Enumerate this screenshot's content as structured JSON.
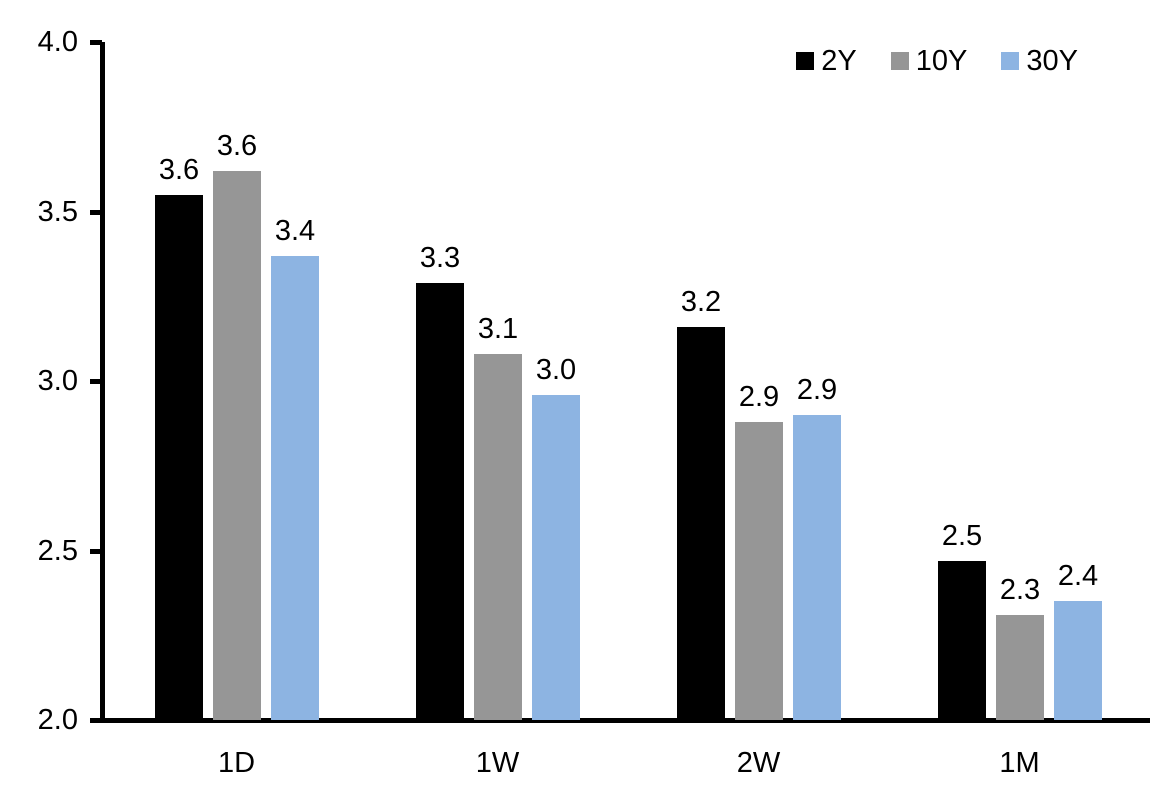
{
  "chart_data": {
    "type": "bar",
    "title": "",
    "categories": [
      "1D",
      "1W",
      "2W",
      "1M"
    ],
    "series": [
      {
        "name": "2Y",
        "color": "#000000",
        "values": [
          3.55,
          3.29,
          3.16,
          2.47
        ],
        "labels": [
          "3.6",
          "3.3",
          "3.2",
          "2.5"
        ]
      },
      {
        "name": "10Y",
        "color": "#969696",
        "values": [
          3.62,
          3.08,
          2.88,
          2.31
        ],
        "labels": [
          "3.6",
          "3.1",
          "2.9",
          "2.3"
        ]
      },
      {
        "name": "30Y",
        "color": "#8DB4E2",
        "values": [
          3.37,
          2.96,
          2.9,
          2.35
        ],
        "labels": [
          "3.4",
          "3.0",
          "2.9",
          "2.4"
        ]
      }
    ],
    "y_axis": {
      "min": 2.0,
      "max": 4.0,
      "tick_values": [
        4.0,
        3.5,
        3.0,
        2.5,
        2.0
      ],
      "tick_labels": [
        "4.0",
        "3.5",
        "3.0",
        "2.5",
        "2.0"
      ]
    },
    "legend": {
      "position": "top-right",
      "entries": [
        "2Y",
        "10Y",
        "30Y"
      ]
    },
    "grid": false,
    "axis_color": "#000000",
    "text_color": "#000000",
    "background_color": "#ffffff"
  }
}
